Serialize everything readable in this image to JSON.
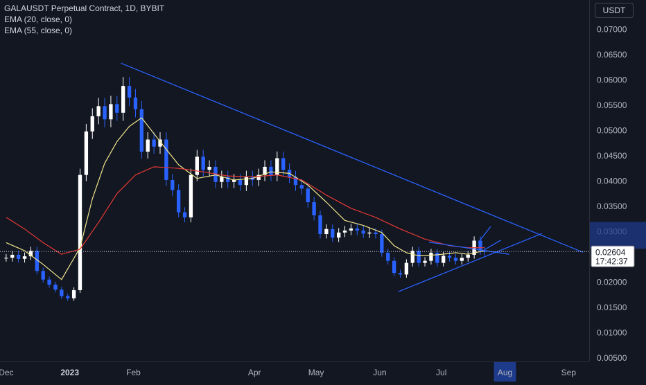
{
  "header": {
    "title": "GALAUSDT Perpetual Contract, 1D, BYBIT",
    "indicators": [
      "EMA (20, close, 0)",
      "EMA (55, close, 0)"
    ],
    "currency_button": "USDT"
  },
  "colors": {
    "background": "#131722",
    "bull_candle": "#ffffff",
    "bear_candle": "#2962ff",
    "ema20": "#f0e68c",
    "ema55": "#e53935",
    "trendline": "#2962ff",
    "price_tag": "#2962ff"
  },
  "current_price": {
    "value": "0.02604",
    "countdown": "17:42:37"
  },
  "chart_data": {
    "type": "line",
    "symbol": "GALAUSDT",
    "interval": "1D",
    "x_axis": {
      "tick_labels": [
        "Dec",
        "2023",
        "Feb",
        "Apr",
        "May",
        "Jun",
        "Jul",
        "Aug",
        "Sep"
      ],
      "highlighted": "Aug"
    },
    "y_axis": {
      "range": [
        0.0043,
        0.0758
      ],
      "tick_labels": [
        "0.07000",
        "0.06500",
        "0.06000",
        "0.05500",
        "0.05000",
        "0.04500",
        "0.04000",
        "0.03500",
        "0.03000",
        "0.02000",
        "0.01500",
        "0.01000",
        "0.00500"
      ],
      "tick_values": [
        0.07,
        0.065,
        0.06,
        0.055,
        0.05,
        0.045,
        0.04,
        0.035,
        0.03,
        0.02,
        0.015,
        0.01,
        0.005
      ]
    },
    "series": [
      {
        "name": "Close",
        "style": "candles",
        "x": [
          "2022-12-01",
          "2022-12-04",
          "2022-12-07",
          "2022-12-10",
          "2022-12-13",
          "2022-12-16",
          "2022-12-19",
          "2022-12-22",
          "2022-12-25",
          "2022-12-28",
          "2022-12-31",
          "2023-01-03",
          "2023-01-06",
          "2023-01-09",
          "2023-01-12",
          "2023-01-15",
          "2023-01-18",
          "2023-01-21",
          "2023-01-24",
          "2023-01-27",
          "2023-01-30",
          "2023-02-02",
          "2023-02-05",
          "2023-02-08",
          "2023-02-11",
          "2023-02-14",
          "2023-02-17",
          "2023-02-20",
          "2023-02-23",
          "2023-02-26",
          "2023-03-01",
          "2023-03-04",
          "2023-03-07",
          "2023-03-10",
          "2023-03-13",
          "2023-03-16",
          "2023-03-19",
          "2023-03-22",
          "2023-03-25",
          "2023-03-28",
          "2023-03-31",
          "2023-04-03",
          "2023-04-06",
          "2023-04-09",
          "2023-04-12",
          "2023-04-15",
          "2023-04-18",
          "2023-04-21",
          "2023-04-24",
          "2023-04-27",
          "2023-04-30",
          "2023-05-03",
          "2023-05-06",
          "2023-05-09",
          "2023-05-12",
          "2023-05-15",
          "2023-05-18",
          "2023-05-21",
          "2023-05-24",
          "2023-05-27",
          "2023-05-30",
          "2023-06-02",
          "2023-06-05",
          "2023-06-08",
          "2023-06-11",
          "2023-06-14",
          "2023-06-17",
          "2023-06-20",
          "2023-06-23",
          "2023-06-26",
          "2023-06-29",
          "2023-07-02",
          "2023-07-05",
          "2023-07-08",
          "2023-07-11",
          "2023-07-14",
          "2023-07-17",
          "2023-07-20",
          "2023-07-22"
        ],
        "values": [
          0.0248,
          0.0254,
          0.0246,
          0.0251,
          0.0262,
          0.0222,
          0.0205,
          0.0195,
          0.0185,
          0.0172,
          0.0168,
          0.0184,
          0.0412,
          0.0498,
          0.0528,
          0.0548,
          0.0522,
          0.0552,
          0.0535,
          0.0588,
          0.0565,
          0.0542,
          0.0458,
          0.0482,
          0.0468,
          0.0482,
          0.0402,
          0.0382,
          0.0338,
          0.0328,
          0.0412,
          0.0448,
          0.0422,
          0.0428,
          0.0398,
          0.0408,
          0.0398,
          0.0402,
          0.0392,
          0.0408,
          0.0402,
          0.0412,
          0.0428,
          0.0412,
          0.0445,
          0.0422,
          0.0408,
          0.0392,
          0.0385,
          0.0358,
          0.0332,
          0.0295,
          0.0305,
          0.0288,
          0.0298,
          0.0302,
          0.0306,
          0.0302,
          0.0296,
          0.0298,
          0.0295,
          0.0258,
          0.0242,
          0.0218,
          0.0215,
          0.0238,
          0.0262,
          0.0238,
          0.0242,
          0.0258,
          0.0238,
          0.0252,
          0.0248,
          0.0242,
          0.0248,
          0.0254,
          0.0282,
          0.0262,
          0.026
        ]
      },
      {
        "name": "EMA (20, close, 0)",
        "x": [
          "2022-12-01",
          "2022-12-10",
          "2022-12-19",
          "2022-12-28",
          "2023-01-06",
          "2023-01-12",
          "2023-01-18",
          "2023-01-24",
          "2023-01-30",
          "2023-02-05",
          "2023-02-14",
          "2023-02-23",
          "2023-03-04",
          "2023-03-13",
          "2023-03-22",
          "2023-03-31",
          "2023-04-09",
          "2023-04-18",
          "2023-04-27",
          "2023-05-06",
          "2023-05-15",
          "2023-05-24",
          "2023-06-02",
          "2023-06-08",
          "2023-06-14",
          "2023-06-20",
          "2023-06-29",
          "2023-07-08",
          "2023-07-14",
          "2023-07-22"
        ],
        "values": [
          0.0278,
          0.0262,
          0.0235,
          0.0205,
          0.0268,
          0.0365,
          0.0435,
          0.0478,
          0.0508,
          0.0525,
          0.0478,
          0.0432,
          0.0405,
          0.0412,
          0.0402,
          0.0405,
          0.0418,
          0.0415,
          0.0392,
          0.0358,
          0.0322,
          0.0312,
          0.0298,
          0.0272,
          0.0258,
          0.0252,
          0.0254,
          0.0258,
          0.0255,
          0.0262
        ]
      },
      {
        "name": "EMA (55, close, 0)",
        "x": [
          "2022-12-01",
          "2022-12-10",
          "2022-12-19",
          "2022-12-28",
          "2023-01-06",
          "2023-01-15",
          "2023-01-24",
          "2023-02-02",
          "2023-02-11",
          "2023-02-23",
          "2023-03-07",
          "2023-03-19",
          "2023-03-31",
          "2023-04-12",
          "2023-04-24",
          "2023-05-06",
          "2023-05-18",
          "2023-05-30",
          "2023-06-11",
          "2023-06-23",
          "2023-07-05",
          "2023-07-14",
          "2023-07-22"
        ],
        "values": [
          0.0328,
          0.0305,
          0.0278,
          0.0255,
          0.0265,
          0.0318,
          0.0375,
          0.0412,
          0.0428,
          0.0425,
          0.0418,
          0.041,
          0.0408,
          0.0412,
          0.0402,
          0.0372,
          0.0346,
          0.0328,
          0.0305,
          0.0285,
          0.0272,
          0.0268,
          0.0268
        ]
      },
      {
        "name": "Descending trendline",
        "x": [
          "2023-01-26",
          "2023-09-08"
        ],
        "values": [
          0.0633,
          0.0259
        ]
      },
      {
        "name": "Triangle lower line",
        "x": [
          "2023-06-10",
          "2023-08-19"
        ],
        "values": [
          0.0181,
          0.0296
        ]
      },
      {
        "name": "Triangle upper line",
        "x": [
          "2023-06-25",
          "2023-08-03"
        ],
        "values": [
          0.0279,
          0.0255
        ]
      },
      {
        "name": "Projection line",
        "x": [
          "2023-07-22",
          "2023-07-30"
        ],
        "values": [
          0.0264,
          0.0283
        ]
      },
      {
        "name": "Projection spike",
        "x": [
          "2023-07-19",
          "2023-07-25"
        ],
        "values": [
          0.0278,
          0.031
        ]
      }
    ]
  }
}
